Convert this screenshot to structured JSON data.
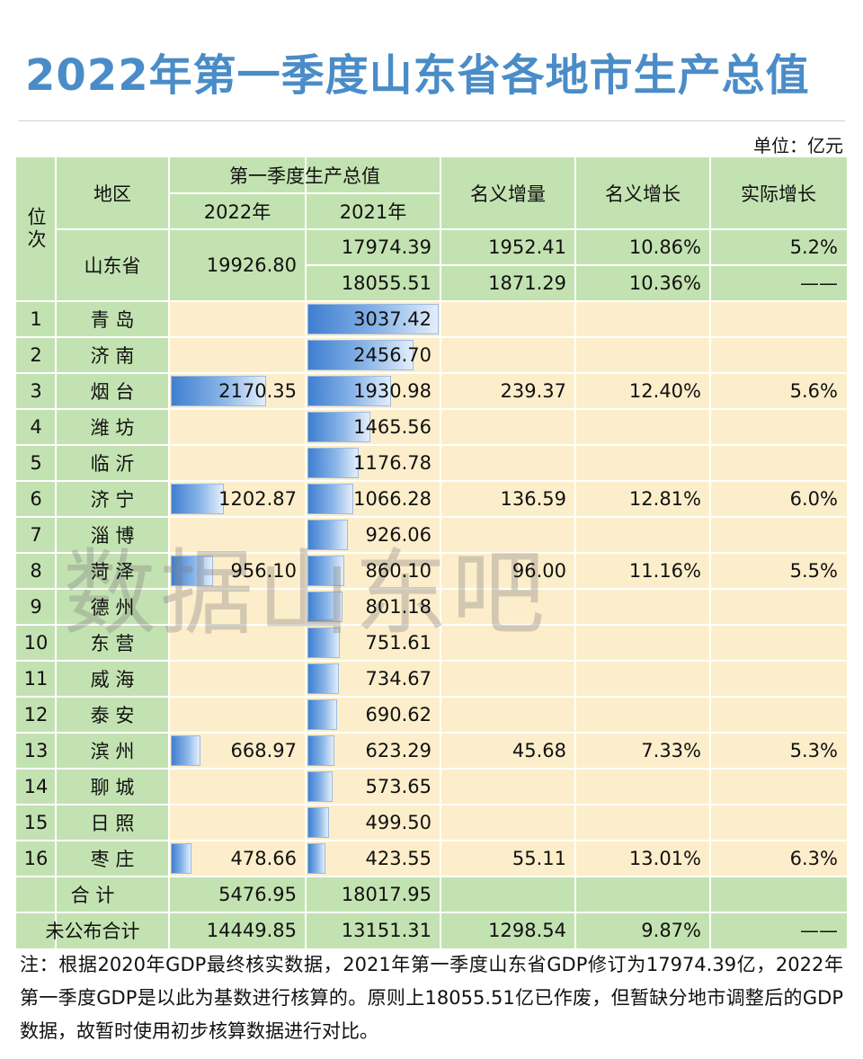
{
  "title": "2022年第一季度山东省各地市生产总值",
  "unit": "单位：亿元",
  "headers": {
    "rank": "位次",
    "region": "地区",
    "gdp_group": "第一季度生产总值",
    "y2022": "2022年",
    "y2021": "2021年",
    "increase": "名义增量",
    "nominal": "名义增长",
    "real": "实际增长"
  },
  "province": {
    "name": "山东省",
    "v2022": "19926.80",
    "v2021_revised": "17974.39",
    "v2021_prelim": "18055.51",
    "inc_revised": "1952.41",
    "inc_prelim": "1871.29",
    "nom_revised": "10.86%",
    "nom_prelim": "10.36%",
    "real_revised": "5.2%",
    "real_prelim": "——"
  },
  "cities": [
    {
      "rank": "1",
      "name": "青 岛",
      "v2022": "",
      "v2021": "3037.42",
      "inc": "",
      "nom": "",
      "real": ""
    },
    {
      "rank": "2",
      "name": "济 南",
      "v2022": "",
      "v2021": "2456.70",
      "inc": "",
      "nom": "",
      "real": ""
    },
    {
      "rank": "3",
      "name": "烟 台",
      "v2022": "2170.35",
      "v2021": "1930.98",
      "inc": "239.37",
      "nom": "12.40%",
      "real": "5.6%"
    },
    {
      "rank": "4",
      "name": "潍 坊",
      "v2022": "",
      "v2021": "1465.56",
      "inc": "",
      "nom": "",
      "real": ""
    },
    {
      "rank": "5",
      "name": "临 沂",
      "v2022": "",
      "v2021": "1176.78",
      "inc": "",
      "nom": "",
      "real": ""
    },
    {
      "rank": "6",
      "name": "济 宁",
      "v2022": "1202.87",
      "v2021": "1066.28",
      "inc": "136.59",
      "nom": "12.81%",
      "real": "6.0%"
    },
    {
      "rank": "7",
      "name": "淄 博",
      "v2022": "",
      "v2021": "926.06",
      "inc": "",
      "nom": "",
      "real": ""
    },
    {
      "rank": "8",
      "name": "菏 泽",
      "v2022": "956.10",
      "v2021": "860.10",
      "inc": "96.00",
      "nom": "11.16%",
      "real": "5.5%"
    },
    {
      "rank": "9",
      "name": "德 州",
      "v2022": "",
      "v2021": "801.18",
      "inc": "",
      "nom": "",
      "real": ""
    },
    {
      "rank": "10",
      "name": "东 营",
      "v2022": "",
      "v2021": "751.61",
      "inc": "",
      "nom": "",
      "real": ""
    },
    {
      "rank": "11",
      "name": "威 海",
      "v2022": "",
      "v2021": "734.67",
      "inc": "",
      "nom": "",
      "real": ""
    },
    {
      "rank": "12",
      "name": "泰 安",
      "v2022": "",
      "v2021": "690.62",
      "inc": "",
      "nom": "",
      "real": ""
    },
    {
      "rank": "13",
      "name": "滨 州",
      "v2022": "668.97",
      "v2021": "623.29",
      "inc": "45.68",
      "nom": "7.33%",
      "real": "5.3%"
    },
    {
      "rank": "14",
      "name": "聊 城",
      "v2022": "",
      "v2021": "573.65",
      "inc": "",
      "nom": "",
      "real": ""
    },
    {
      "rank": "15",
      "name": "日 照",
      "v2022": "",
      "v2021": "499.50",
      "inc": "",
      "nom": "",
      "real": ""
    },
    {
      "rank": "16",
      "name": "枣 庄",
      "v2022": "478.66",
      "v2021": "423.55",
      "inc": "55.11",
      "nom": "13.01%",
      "real": "6.3%"
    }
  ],
  "total": {
    "label": "合 计",
    "v2022": "5476.95",
    "v2021": "18017.95",
    "inc": "",
    "nom": "",
    "real": ""
  },
  "unpublished": {
    "label": "未公布合计",
    "v2022": "14449.85",
    "v2021": "13151.31",
    "inc": "1298.54",
    "nom": "9.87%",
    "real": "——"
  },
  "watermark": "数据山东吧",
  "note": "注：根据2020年GDP最终核实数据，2021年第一季度山东省GDP修订为17974.39亿，2022年第一季度GDP是以此为基数进行核算的。原则上18055.51亿已作废，但暂缺分地市调整后的GDP数据，故暂时使用初步核算数据进行对比。"
}
